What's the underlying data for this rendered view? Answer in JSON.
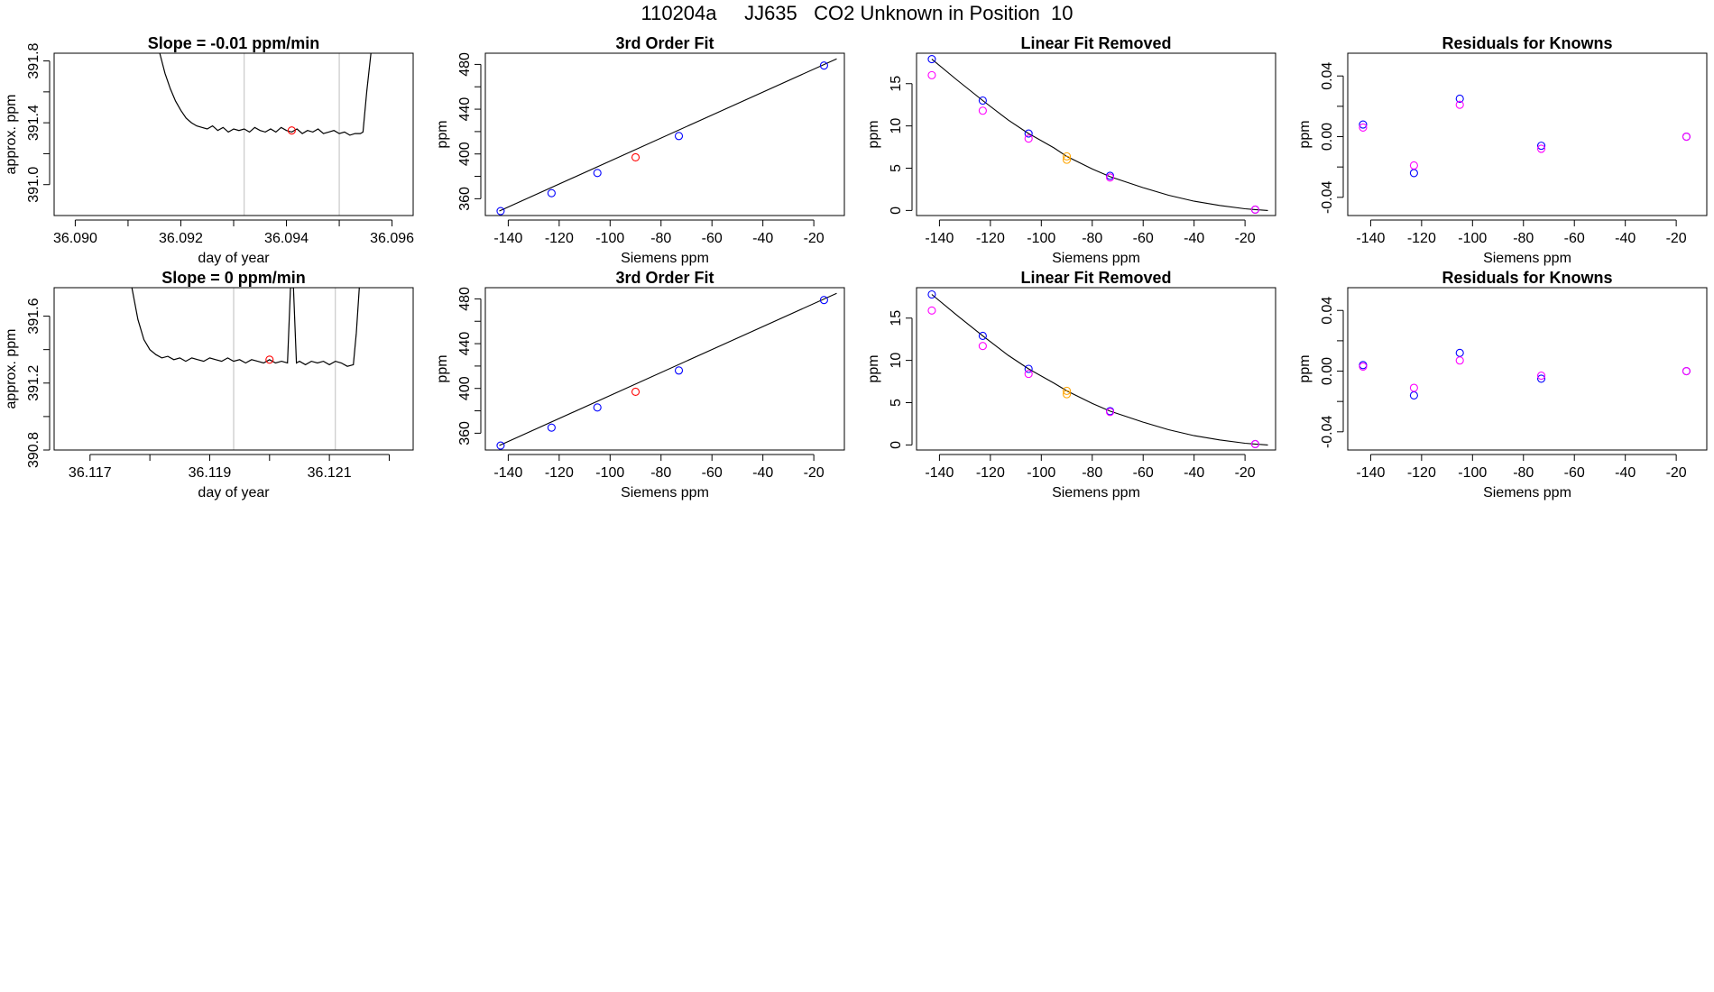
{
  "figure": {
    "title": "110204a     JJ635   CO2 Unknown in Position  10"
  },
  "colors": {
    "axis": "#000000",
    "trace": "#000000",
    "vline": "#bebebe",
    "known_point": "#0000ff",
    "unknown_point": "#ff0000",
    "known_point_alt": "#ff00ff",
    "unknown_point_alt": "#ffa500"
  },
  "chart_data": [
    {
      "id": "p11",
      "type": "line",
      "title": "Slope =  -0.01  ppm/min",
      "xlabel": "day of year",
      "ylabel": "approx. ppm",
      "xlim": [
        36.0896,
        36.0964
      ],
      "ylim": [
        390.8,
        391.85
      ],
      "xticks": [
        36.09,
        36.091,
        36.092,
        36.093,
        36.094,
        36.095,
        36.096
      ],
      "xtick_labels": [
        "36.090",
        "",
        "36.092",
        "",
        "36.094",
        "",
        "36.096"
      ],
      "yticks": [
        391.0,
        391.2,
        391.4,
        391.6,
        391.8
      ],
      "ytick_labels": [
        "391.0",
        "",
        "391.4",
        "",
        "391.8"
      ],
      "vlines": [
        36.0932,
        36.095
      ],
      "trace": {
        "x": [
          36.0916,
          36.0917,
          36.0918,
          36.0919,
          36.092,
          36.0921,
          36.0922,
          36.0923,
          36.0924,
          36.0925,
          36.0926,
          36.0927,
          36.0928,
          36.0929,
          36.093,
          36.0931,
          36.0932,
          36.0933,
          36.0934,
          36.0935,
          36.0936,
          36.0937,
          36.0938,
          36.0939,
          36.094,
          36.0941,
          36.0942,
          36.0943,
          36.0944,
          36.0945,
          36.0946,
          36.0947,
          36.0948,
          36.0949,
          36.095,
          36.0951,
          36.0952,
          36.0953,
          36.0954,
          36.09545,
          36.09552,
          36.0956
        ],
        "y": [
          391.85,
          391.72,
          391.62,
          391.54,
          391.48,
          391.43,
          391.4,
          391.38,
          391.37,
          391.36,
          391.38,
          391.35,
          391.37,
          391.34,
          391.36,
          391.35,
          391.36,
          391.34,
          391.37,
          391.35,
          391.34,
          391.36,
          391.34,
          391.37,
          391.35,
          391.34,
          391.36,
          391.33,
          391.35,
          391.34,
          391.36,
          391.33,
          391.34,
          391.35,
          391.33,
          391.34,
          391.32,
          391.33,
          391.33,
          391.34,
          391.6,
          391.85
        ]
      },
      "markers": [
        {
          "x": 36.0941,
          "y": 391.35,
          "role": "unknown"
        }
      ]
    },
    {
      "id": "p12",
      "type": "scatter",
      "title": "3rd Order Fit",
      "xlabel": "Siemens ppm",
      "ylabel": "ppm",
      "xlim": [
        -149,
        -8
      ],
      "ylim": [
        345,
        490
      ],
      "xticks": [
        -140,
        -120,
        -100,
        -80,
        -60,
        -40,
        -20
      ],
      "xtick_labels": [
        "-140",
        "-120",
        "-100",
        "-80",
        "-60",
        "-40",
        "-20"
      ],
      "yticks": [
        360,
        380,
        400,
        420,
        440,
        460,
        480
      ],
      "ytick_labels": [
        "360",
        "",
        "400",
        "",
        "440",
        "",
        "480"
      ],
      "fit_line": {
        "x": [
          -143.5,
          -11
        ],
        "y": [
          349,
          485
        ]
      },
      "points": [
        {
          "x": -143,
          "y": 349,
          "role": "known"
        },
        {
          "x": -123,
          "y": 365,
          "role": "known"
        },
        {
          "x": -105,
          "y": 383,
          "role": "known"
        },
        {
          "x": -90,
          "y": 397,
          "role": "unknown"
        },
        {
          "x": -73,
          "y": 416,
          "role": "known"
        },
        {
          "x": -16,
          "y": 479,
          "role": "known"
        }
      ]
    },
    {
      "id": "p13",
      "type": "scatter",
      "title": "Linear Fit Removed",
      "xlabel": "Siemens ppm",
      "ylabel": "ppm",
      "xlim": [
        -149,
        -8
      ],
      "ylim": [
        -0.6,
        18.6
      ],
      "xticks": [
        -140,
        -120,
        -100,
        -80,
        -60,
        -40,
        -20
      ],
      "xtick_labels": [
        "-140",
        "-120",
        "-100",
        "-80",
        "-60",
        "-40",
        "-20"
      ],
      "yticks": [
        0,
        5,
        10,
        15
      ],
      "ytick_labels": [
        "0",
        "5",
        "10",
        "15"
      ],
      "fit_curve": {
        "x": [
          -143,
          -133,
          -123,
          -113,
          -105,
          -95,
          -90,
          -80,
          -73,
          -60,
          -50,
          -40,
          -30,
          -20,
          -16,
          -11
        ],
        "y": [
          17.9,
          15.4,
          13.0,
          10.7,
          9.1,
          7.4,
          6.4,
          4.9,
          4.0,
          2.7,
          1.8,
          1.1,
          0.6,
          0.2,
          0.1,
          0.0
        ]
      },
      "points": [
        {
          "x": -143,
          "y": 17.9,
          "role": "known"
        },
        {
          "x": -143,
          "y": 16.0,
          "role": "known_alt"
        },
        {
          "x": -123,
          "y": 13.0,
          "role": "known"
        },
        {
          "x": -123,
          "y": 11.8,
          "role": "known_alt"
        },
        {
          "x": -105,
          "y": 9.1,
          "role": "known"
        },
        {
          "x": -105,
          "y": 8.5,
          "role": "known_alt"
        },
        {
          "x": -90,
          "y": 6.4,
          "role": "unknown_alt"
        },
        {
          "x": -90,
          "y": 6.0,
          "role": "unknown_alt"
        },
        {
          "x": -73,
          "y": 4.1,
          "role": "known"
        },
        {
          "x": -73,
          "y": 3.9,
          "role": "known_alt"
        },
        {
          "x": -16,
          "y": 0.1,
          "role": "known"
        },
        {
          "x": -16,
          "y": 0.1,
          "role": "known_alt"
        }
      ]
    },
    {
      "id": "p14",
      "type": "scatter",
      "title": "Residuals for Knowns",
      "xlabel": "Siemens ppm",
      "ylabel": "ppm",
      "xlim": [
        -149,
        -8
      ],
      "ylim": [
        -0.052,
        0.055
      ],
      "xticks": [
        -140,
        -120,
        -100,
        -80,
        -60,
        -40,
        -20
      ],
      "xtick_labels": [
        "-140",
        "-120",
        "-100",
        "-80",
        "-60",
        "-40",
        "-20"
      ],
      "yticks": [
        -0.04,
        -0.02,
        0.0,
        0.02,
        0.04
      ],
      "ytick_labels": [
        "-0.04",
        "",
        "0.00",
        "",
        "0.04"
      ],
      "points": [
        {
          "x": -143,
          "y": 0.008,
          "role": "known"
        },
        {
          "x": -143,
          "y": 0.006,
          "role": "known_alt"
        },
        {
          "x": -123,
          "y": -0.024,
          "role": "known"
        },
        {
          "x": -123,
          "y": -0.019,
          "role": "known_alt"
        },
        {
          "x": -105,
          "y": 0.025,
          "role": "known"
        },
        {
          "x": -105,
          "y": 0.021,
          "role": "known_alt"
        },
        {
          "x": -73,
          "y": -0.006,
          "role": "known"
        },
        {
          "x": -73,
          "y": -0.008,
          "role": "known_alt"
        },
        {
          "x": -16,
          "y": 0.0,
          "role": "known"
        },
        {
          "x": -16,
          "y": 0.0,
          "role": "known_alt"
        }
      ]
    },
    {
      "id": "p21",
      "type": "line",
      "title": "Slope =  0  ppm/min",
      "xlabel": "day of year",
      "ylabel": "approx. ppm",
      "xlim": [
        36.1164,
        36.1224
      ],
      "ylim": [
        390.8,
        391.77
      ],
      "xticks": [
        36.117,
        36.118,
        36.119,
        36.12,
        36.121,
        36.122
      ],
      "xtick_labels": [
        "36.117",
        "",
        "36.119",
        "",
        "36.121",
        ""
      ],
      "yticks": [
        390.8,
        391.0,
        391.2,
        391.4,
        391.6
      ],
      "ytick_labels": [
        "390.8",
        "",
        "391.2",
        "",
        "391.6"
      ],
      "vlines": [
        36.1194,
        36.1211
      ],
      "trace": {
        "x": [
          36.1177,
          36.1178,
          36.1179,
          36.118,
          36.1181,
          36.1182,
          36.1183,
          36.1184,
          36.1185,
          36.1186,
          36.1187,
          36.1188,
          36.1189,
          36.119,
          36.1191,
          36.1192,
          36.1193,
          36.1194,
          36.1195,
          36.1196,
          36.1197,
          36.1198,
          36.1199,
          36.12,
          36.1201,
          36.1202,
          36.1203,
          36.12035,
          36.1204,
          36.12045,
          36.1205,
          36.1206,
          36.1207,
          36.1208,
          36.1209,
          36.121,
          36.1211,
          36.1212,
          36.1213,
          36.1214,
          36.12145,
          36.1215
        ],
        "y": [
          391.77,
          391.58,
          391.46,
          391.4,
          391.37,
          391.35,
          391.36,
          391.34,
          391.35,
          391.33,
          391.35,
          391.34,
          391.33,
          391.35,
          391.34,
          391.33,
          391.35,
          391.33,
          391.34,
          391.32,
          391.34,
          391.33,
          391.32,
          391.34,
          391.32,
          391.33,
          391.32,
          391.77,
          391.77,
          391.32,
          391.33,
          391.31,
          391.33,
          391.32,
          391.33,
          391.31,
          391.33,
          391.32,
          391.3,
          391.31,
          391.5,
          391.77
        ]
      },
      "markers": [
        {
          "x": 36.12,
          "y": 391.34,
          "role": "unknown"
        }
      ]
    },
    {
      "id": "p22",
      "type": "scatter",
      "title": "3rd Order Fit",
      "xlabel": "Siemens ppm",
      "ylabel": "ppm",
      "xlim": [
        -149,
        -8
      ],
      "ylim": [
        345,
        490
      ],
      "xticks": [
        -140,
        -120,
        -100,
        -80,
        -60,
        -40,
        -20
      ],
      "xtick_labels": [
        "-140",
        "-120",
        "-100",
        "-80",
        "-60",
        "-40",
        "-20"
      ],
      "yticks": [
        360,
        380,
        400,
        420,
        440,
        460,
        480
      ],
      "ytick_labels": [
        "360",
        "",
        "400",
        "",
        "440",
        "",
        "480"
      ],
      "fit_line": {
        "x": [
          -143.5,
          -11
        ],
        "y": [
          349,
          485
        ]
      },
      "points": [
        {
          "x": -143,
          "y": 349,
          "role": "known"
        },
        {
          "x": -123,
          "y": 365,
          "role": "known"
        },
        {
          "x": -105,
          "y": 383,
          "role": "known"
        },
        {
          "x": -90,
          "y": 397,
          "role": "unknown"
        },
        {
          "x": -73,
          "y": 416,
          "role": "known"
        },
        {
          "x": -16,
          "y": 479,
          "role": "known"
        }
      ]
    },
    {
      "id": "p23",
      "type": "scatter",
      "title": "Linear Fit Removed",
      "xlabel": "Siemens ppm",
      "ylabel": "ppm",
      "xlim": [
        -149,
        -8
      ],
      "ylim": [
        -0.6,
        18.6
      ],
      "xticks": [
        -140,
        -120,
        -100,
        -80,
        -60,
        -40,
        -20
      ],
      "xtick_labels": [
        "-140",
        "-120",
        "-100",
        "-80",
        "-60",
        "-40",
        "-20"
      ],
      "yticks": [
        0,
        5,
        10,
        15
      ],
      "ytick_labels": [
        "0",
        "5",
        "10",
        "15"
      ],
      "fit_curve": {
        "x": [
          -143,
          -133,
          -123,
          -113,
          -105,
          -95,
          -90,
          -80,
          -73,
          -60,
          -50,
          -40,
          -30,
          -20,
          -16,
          -11
        ],
        "y": [
          17.8,
          15.3,
          12.9,
          10.6,
          9.0,
          7.3,
          6.4,
          4.9,
          4.0,
          2.7,
          1.8,
          1.1,
          0.6,
          0.2,
          0.1,
          0.0
        ]
      },
      "points": [
        {
          "x": -143,
          "y": 17.8,
          "role": "known"
        },
        {
          "x": -143,
          "y": 15.9,
          "role": "known_alt"
        },
        {
          "x": -123,
          "y": 12.9,
          "role": "known"
        },
        {
          "x": -123,
          "y": 11.7,
          "role": "known_alt"
        },
        {
          "x": -105,
          "y": 9.0,
          "role": "known"
        },
        {
          "x": -105,
          "y": 8.4,
          "role": "known_alt"
        },
        {
          "x": -90,
          "y": 6.4,
          "role": "unknown_alt"
        },
        {
          "x": -90,
          "y": 6.0,
          "role": "unknown_alt"
        },
        {
          "x": -73,
          "y": 4.0,
          "role": "known"
        },
        {
          "x": -73,
          "y": 3.9,
          "role": "known_alt"
        },
        {
          "x": -16,
          "y": 0.1,
          "role": "known"
        },
        {
          "x": -16,
          "y": 0.1,
          "role": "known_alt"
        }
      ]
    },
    {
      "id": "p24",
      "type": "scatter",
      "title": "Residuals for Knowns",
      "xlabel": "Siemens ppm",
      "ylabel": "ppm",
      "xlim": [
        -149,
        -8
      ],
      "ylim": [
        -0.052,
        0.055
      ],
      "xticks": [
        -140,
        -120,
        -100,
        -80,
        -60,
        -40,
        -20
      ],
      "xtick_labels": [
        "-140",
        "-120",
        "-100",
        "-80",
        "-60",
        "-40",
        "-20"
      ],
      "yticks": [
        -0.04,
        -0.02,
        0.0,
        0.02,
        0.04
      ],
      "ytick_labels": [
        "-0.04",
        "",
        "0.00",
        "",
        "0.04"
      ],
      "points": [
        {
          "x": -143,
          "y": 0.004,
          "role": "known"
        },
        {
          "x": -143,
          "y": 0.003,
          "role": "known_alt"
        },
        {
          "x": -123,
          "y": -0.016,
          "role": "known"
        },
        {
          "x": -123,
          "y": -0.011,
          "role": "known_alt"
        },
        {
          "x": -105,
          "y": 0.012,
          "role": "known"
        },
        {
          "x": -105,
          "y": 0.007,
          "role": "known_alt"
        },
        {
          "x": -73,
          "y": -0.005,
          "role": "known"
        },
        {
          "x": -73,
          "y": -0.003,
          "role": "known_alt"
        },
        {
          "x": -16,
          "y": 0.0,
          "role": "known"
        },
        {
          "x": -16,
          "y": 0.0,
          "role": "known_alt"
        }
      ]
    }
  ]
}
